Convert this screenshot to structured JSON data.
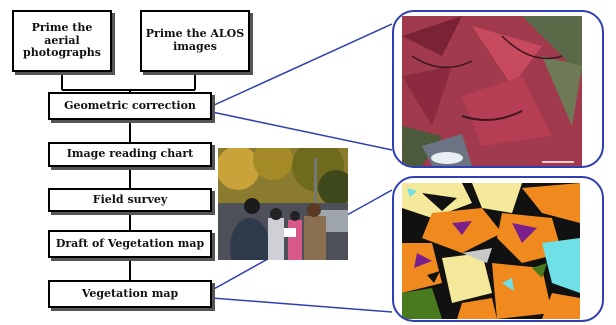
{
  "flow": {
    "prime_aerial": "Prime the aerial photographs",
    "prime_alos": "Prime the ALOS images",
    "geometric": "Geometric correction",
    "image_reading": "Image reading chart",
    "field_survey": "Field survey",
    "draft_map": "Draft of Vegetation map",
    "vegetation_map": "Vegetation map"
  },
  "colors": {
    "line": "#2f3fb0",
    "box_border": "#000000",
    "satellite_red": "#b0344a",
    "map_orange": "#f08a1e",
    "map_yellow": "#f4e99a",
    "map_cyan": "#6fe0e6",
    "map_purple": "#7a1f8c",
    "map_black": "#111111",
    "map_green": "#4a7a1e"
  },
  "icons": {
    "satellite": "satellite-image",
    "vegmap": "vegetation-map-image",
    "survey": "field-survey-photo"
  }
}
